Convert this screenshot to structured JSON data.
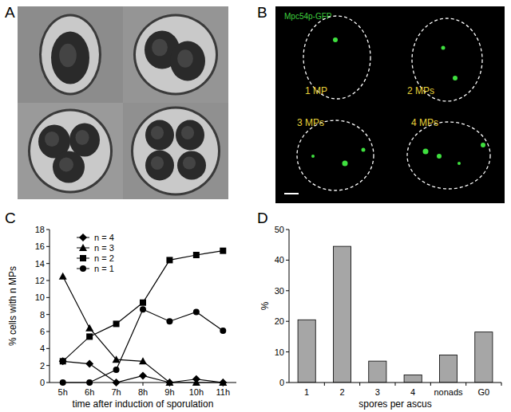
{
  "panel_labels": [
    "A",
    "B",
    "C",
    "D"
  ],
  "micrograph": {
    "stain": "Mpc54p-GFP",
    "cells": [
      "1 MP",
      "2 MPs",
      "3 MPs",
      "4 MPs"
    ]
  },
  "chart_data": [
    {
      "type": "line",
      "x_label": "time after induction of sporulation",
      "y_label": "% cells with n MPs",
      "categories": [
        "5h",
        "6h",
        "7h",
        "8h",
        "9h",
        "10h",
        "11h"
      ],
      "series": [
        {
          "name": "n = 4",
          "color": "#000000",
          "marker": "diamond",
          "values": [
            2.5,
            2.2,
            0,
            0.8,
            0,
            0.4,
            0
          ]
        },
        {
          "name": "n = 3",
          "color": "#000000",
          "marker": "triangle",
          "values": [
            12.5,
            6.4,
            2.7,
            2.5,
            0,
            0,
            0
          ]
        },
        {
          "name": "n = 2",
          "color": "#000000",
          "marker": "square",
          "values": [
            2.5,
            5.4,
            6.9,
            9.4,
            14.4,
            15.0,
            15.5
          ]
        },
        {
          "name": "n = 1",
          "color": "#000000",
          "marker": "circle",
          "values": [
            0,
            0,
            1.5,
            8.6,
            7.2,
            8.3,
            6.1
          ]
        }
      ],
      "ylim": [
        0,
        18
      ],
      "yticks": [
        0,
        2,
        4,
        6,
        8,
        10,
        12,
        14,
        16,
        18
      ],
      "grid": false,
      "legend": "upper left"
    },
    {
      "type": "bar",
      "x_label": "spores per ascus",
      "y_label": "%",
      "categories": [
        "1",
        "2",
        "3",
        "4",
        "nonads",
        "G0"
      ],
      "values": [
        20.5,
        44.5,
        7,
        2.5,
        9,
        16.5
      ],
      "color": "#a6a6a6",
      "ylim": [
        0,
        50
      ],
      "yticks": [
        0,
        10,
        20,
        30,
        40,
        50
      ],
      "grid": false
    }
  ]
}
